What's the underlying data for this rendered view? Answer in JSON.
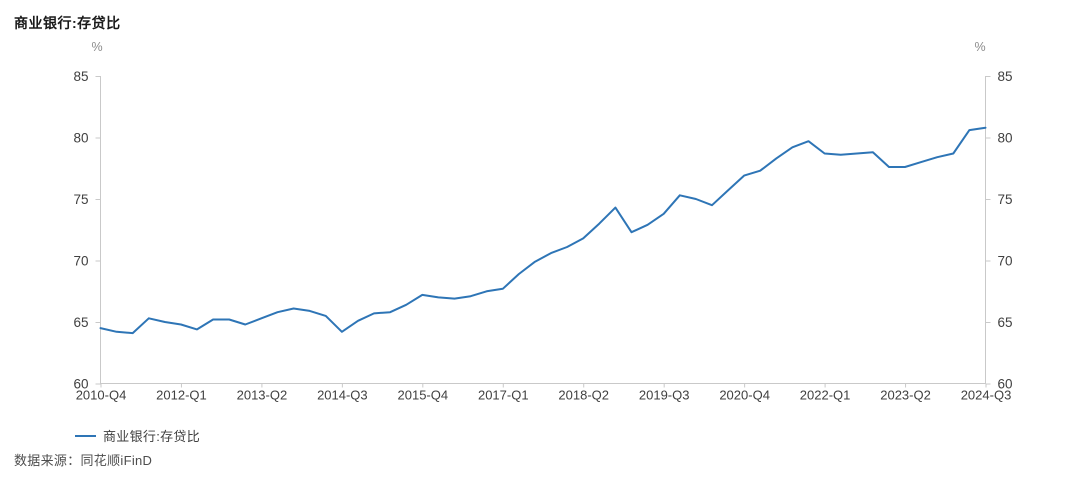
{
  "header": {
    "title": "商业银行:存贷比"
  },
  "chart_data": {
    "type": "line",
    "title": "商业银行:存贷比",
    "unit_label_left": "%",
    "unit_label_right": "%",
    "ylim": [
      60,
      85
    ],
    "yticks": [
      85,
      80,
      75,
      70,
      65,
      60
    ],
    "xtick_step": 5,
    "xtick_labels": [
      "2010-Q4",
      "2012-Q1",
      "2013-Q2",
      "2014-Q3",
      "2015-Q4",
      "2017-Q1",
      "2018-Q2",
      "2019-Q3",
      "2020-Q4",
      "2022-Q1",
      "2023-Q2",
      "2024-Q3"
    ],
    "grid": false,
    "legend_position": "bottom-left",
    "dual_y_axis": true,
    "categories": [
      "2010-Q4",
      "2011-Q1",
      "2011-Q2",
      "2011-Q3",
      "2011-Q4",
      "2012-Q1",
      "2012-Q2",
      "2012-Q3",
      "2012-Q4",
      "2013-Q1",
      "2013-Q2",
      "2013-Q3",
      "2013-Q4",
      "2014-Q1",
      "2014-Q2",
      "2014-Q3",
      "2014-Q4",
      "2015-Q1",
      "2015-Q2",
      "2015-Q3",
      "2015-Q4",
      "2016-Q1",
      "2016-Q2",
      "2016-Q3",
      "2016-Q4",
      "2017-Q1",
      "2017-Q2",
      "2017-Q3",
      "2017-Q4",
      "2018-Q1",
      "2018-Q2",
      "2018-Q3",
      "2018-Q4",
      "2019-Q1",
      "2019-Q2",
      "2019-Q3",
      "2019-Q4",
      "2020-Q1",
      "2020-Q2",
      "2020-Q3",
      "2020-Q4",
      "2021-Q1",
      "2021-Q2",
      "2021-Q3",
      "2021-Q4",
      "2022-Q1",
      "2022-Q2",
      "2022-Q3",
      "2022-Q4",
      "2023-Q1",
      "2023-Q2",
      "2023-Q3",
      "2023-Q4",
      "2024-Q1",
      "2024-Q2",
      "2024-Q3"
    ],
    "series": [
      {
        "name": "商业银行:存贷比",
        "color": "#2e75b6",
        "values": [
          64.5,
          64.2,
          64.1,
          65.3,
          65.0,
          64.8,
          64.4,
          65.2,
          65.2,
          64.8,
          65.3,
          65.8,
          66.1,
          65.9,
          65.5,
          64.2,
          65.1,
          65.7,
          65.8,
          66.4,
          67.2,
          67.0,
          66.9,
          67.1,
          67.5,
          67.7,
          68.9,
          69.9,
          70.6,
          71.1,
          71.8,
          73.0,
          74.3,
          72.3,
          72.9,
          73.8,
          75.3,
          75.0,
          74.5,
          75.7,
          76.9,
          77.3,
          78.3,
          79.2,
          79.7,
          78.7,
          78.6,
          78.7,
          78.8,
          77.6,
          77.6,
          78.0,
          78.4,
          78.7,
          80.6,
          80.8
        ]
      }
    ]
  },
  "legend": {
    "label": "商业银行:存贷比"
  },
  "footer": {
    "source": "数据来源：同花顺iFinD"
  },
  "colors": {
    "line": "#2e75b6",
    "axis": "#c9c9c9",
    "tick_text": "#404040",
    "unit_text": "#8c8c8c"
  }
}
